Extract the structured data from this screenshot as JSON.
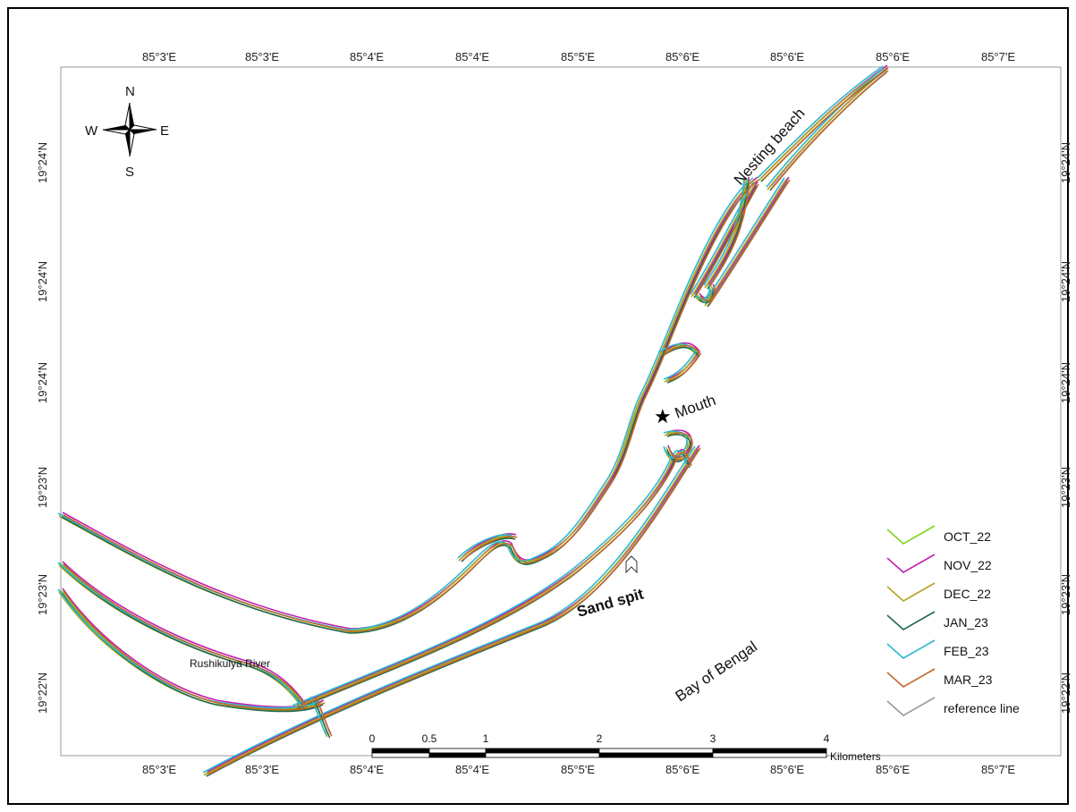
{
  "top_ticks": [
    "85°3'E",
    "85°3'E",
    "85°4'E",
    "85°4'E",
    "85°5'E",
    "85°6'E",
    "85°6'E",
    "85°6'E",
    "85°7'E"
  ],
  "bottom_ticks": [
    "85°3'E",
    "85°3'E",
    "85°4'E",
    "85°4'E",
    "85°5'E",
    "85°6'E",
    "85°6'E",
    "85°6'E",
    "85°7'E"
  ],
  "left_ticks": [
    "19°24'N",
    "19°24'N",
    "19°24'N",
    "19°23'N",
    "19°23'N",
    "19°22'N"
  ],
  "right_ticks": [
    "19°24'N",
    "19°24'N",
    "19°24'N",
    "19°23'N",
    "19°23'N",
    "19°22'N"
  ],
  "compass": {
    "n": "N",
    "s": "S",
    "e": "E",
    "w": "W"
  },
  "labels": {
    "nesting_beach": "Nesting beach",
    "mouth": "Mouth",
    "sand_spit": "Sand  spit",
    "river": "Rushikulya River",
    "bay": "Bay of Bengal"
  },
  "legend": [
    {
      "label": "OCT_22",
      "color": "#7ed321"
    },
    {
      "label": "NOV_22",
      "color": "#c21fae"
    },
    {
      "label": "DEC_22",
      "color": "#b5a21f"
    },
    {
      "label": "JAN_23",
      "color": "#1e6b4f"
    },
    {
      "label": "FEB_23",
      "color": "#2bb9d0"
    },
    {
      "label": "MAR_23",
      "color": "#c0692a"
    },
    {
      "label": "reference line",
      "color": "#9a9a9a"
    }
  ],
  "scalebar": {
    "ticks": [
      "0",
      "0.5",
      "1",
      "2",
      "3",
      "4"
    ],
    "unit": "Kilometers"
  }
}
